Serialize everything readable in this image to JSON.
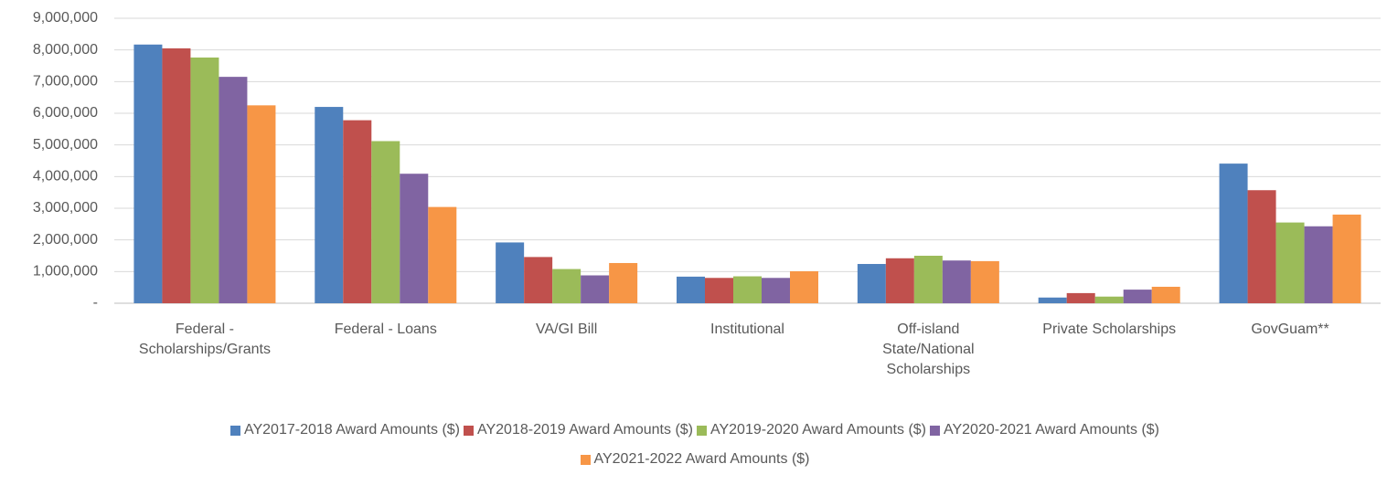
{
  "chart_data": {
    "type": "bar",
    "categories": [
      "Federal - Scholarships/Grants",
      "Federal - Loans",
      "VA/GI Bill",
      "Institutional",
      "Off-island State/National Scholarships",
      "Private Scholarships",
      "GovGuam**"
    ],
    "series": [
      {
        "name": "AY2017-2018 Award Amounts ($)",
        "color": "#4f81bd",
        "values": [
          8170000,
          6200000,
          1920000,
          840000,
          1240000,
          180000,
          4410000
        ]
      },
      {
        "name": "AY2018-2019 Award Amounts ($)",
        "color": "#c0504d",
        "values": [
          8050000,
          5780000,
          1460000,
          800000,
          1420000,
          320000,
          3570000
        ]
      },
      {
        "name": "AY2019-2020 Award Amounts ($)",
        "color": "#9bbb59",
        "values": [
          7760000,
          5120000,
          1080000,
          850000,
          1500000,
          210000,
          2550000
        ]
      },
      {
        "name": "AY2020-2021 Award Amounts ($)",
        "color": "#8064a2",
        "values": [
          7150000,
          4090000,
          880000,
          800000,
          1350000,
          430000,
          2430000
        ]
      },
      {
        "name": "AY2021-2022 Award Amounts ($)",
        "color": "#f79646",
        "values": [
          6250000,
          3040000,
          1270000,
          1010000,
          1330000,
          520000,
          2800000
        ]
      }
    ],
    "ylim": [
      0,
      9000000
    ],
    "yticks": [
      {
        "value": 0,
        "label": "-"
      },
      {
        "value": 1000000,
        "label": "1,000,000"
      },
      {
        "value": 2000000,
        "label": "2,000,000"
      },
      {
        "value": 3000000,
        "label": "3,000,000"
      },
      {
        "value": 4000000,
        "label": "4,000,000"
      },
      {
        "value": 5000000,
        "label": "5,000,000"
      },
      {
        "value": 6000000,
        "label": "6,000,000"
      },
      {
        "value": 7000000,
        "label": "7,000,000"
      },
      {
        "value": 8000000,
        "label": "8,000,000"
      },
      {
        "value": 9000000,
        "label": "9,000,000"
      }
    ],
    "grid": true,
    "legend": "bottom"
  }
}
